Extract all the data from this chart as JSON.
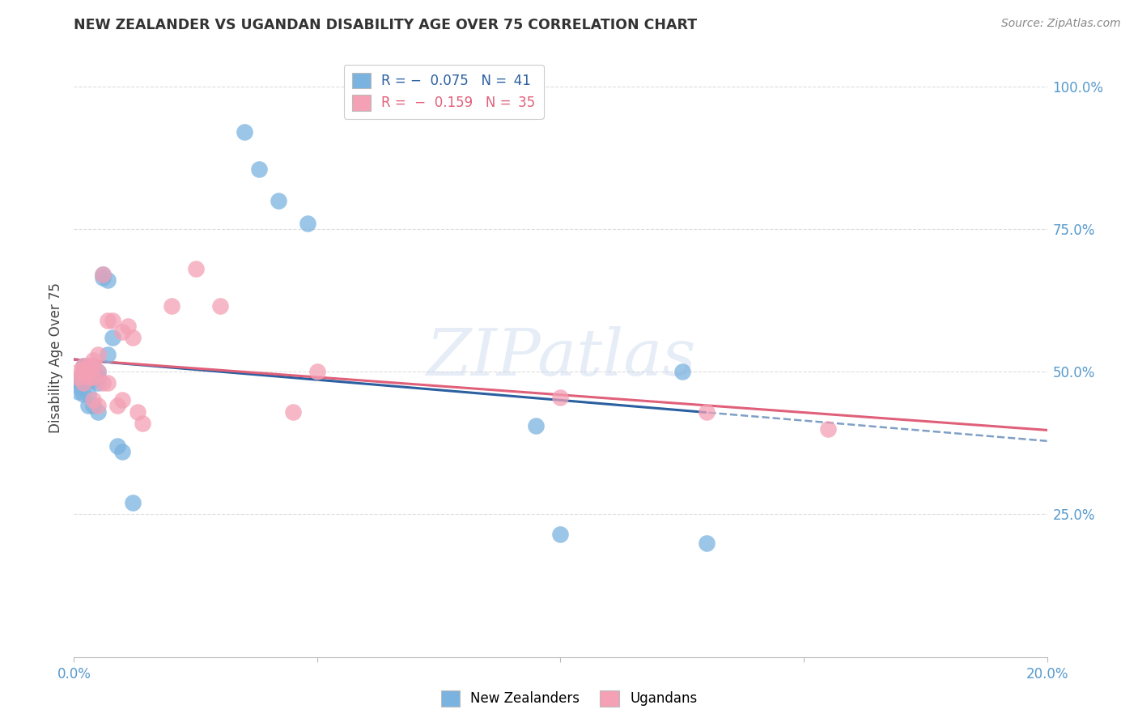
{
  "title": "NEW ZEALANDER VS UGANDAN DISABILITY AGE OVER 75 CORRELATION CHART",
  "source": "Source: ZipAtlas.com",
  "ylabel": "Disability Age Over 75",
  "xlim": [
    0.0,
    0.2
  ],
  "ylim": [
    0.0,
    1.05
  ],
  "nz_color": "#7BB3E0",
  "ug_color": "#F4A0B5",
  "nz_line_color": "#2A5FA0",
  "ug_line_color": "#E0607A",
  "nz_R": -0.075,
  "nz_N": 41,
  "ug_R": -0.159,
  "ug_N": 35,
  "nz_x": [
    0.001,
    0.001,
    0.001,
    0.002,
    0.002,
    0.002,
    0.002,
    0.002,
    0.002,
    0.003,
    0.003,
    0.003,
    0.003,
    0.003,
    0.003,
    0.003,
    0.004,
    0.004,
    0.004,
    0.004,
    0.004,
    0.005,
    0.005,
    0.005,
    0.005,
    0.006,
    0.006,
    0.007,
    0.007,
    0.008,
    0.009,
    0.01,
    0.012,
    0.035,
    0.038,
    0.042,
    0.048,
    0.095,
    0.1,
    0.125,
    0.13
  ],
  "nz_y": [
    0.485,
    0.475,
    0.465,
    0.51,
    0.505,
    0.5,
    0.495,
    0.485,
    0.46,
    0.51,
    0.505,
    0.5,
    0.49,
    0.485,
    0.46,
    0.44,
    0.51,
    0.505,
    0.495,
    0.485,
    0.44,
    0.5,
    0.49,
    0.48,
    0.43,
    0.67,
    0.665,
    0.66,
    0.53,
    0.56,
    0.37,
    0.36,
    0.27,
    0.92,
    0.855,
    0.8,
    0.76,
    0.405,
    0.215,
    0.5,
    0.2
  ],
  "ug_x": [
    0.001,
    0.001,
    0.002,
    0.002,
    0.002,
    0.003,
    0.003,
    0.003,
    0.004,
    0.004,
    0.004,
    0.004,
    0.005,
    0.005,
    0.005,
    0.006,
    0.006,
    0.007,
    0.007,
    0.008,
    0.009,
    0.01,
    0.01,
    0.011,
    0.012,
    0.013,
    0.014,
    0.02,
    0.025,
    0.03,
    0.045,
    0.05,
    0.1,
    0.13,
    0.155
  ],
  "ug_y": [
    0.5,
    0.49,
    0.51,
    0.505,
    0.48,
    0.51,
    0.5,
    0.49,
    0.52,
    0.51,
    0.49,
    0.45,
    0.53,
    0.5,
    0.44,
    0.67,
    0.48,
    0.59,
    0.48,
    0.59,
    0.44,
    0.57,
    0.45,
    0.58,
    0.56,
    0.43,
    0.41,
    0.615,
    0.68,
    0.615,
    0.43,
    0.5,
    0.455,
    0.43,
    0.4
  ],
  "watermark_text": "ZIPatlas",
  "background_color": "#FFFFFF",
  "grid_color": "#DDDDDD",
  "tick_color": "#5599CC",
  "title_color": "#333333",
  "source_color": "#888888"
}
